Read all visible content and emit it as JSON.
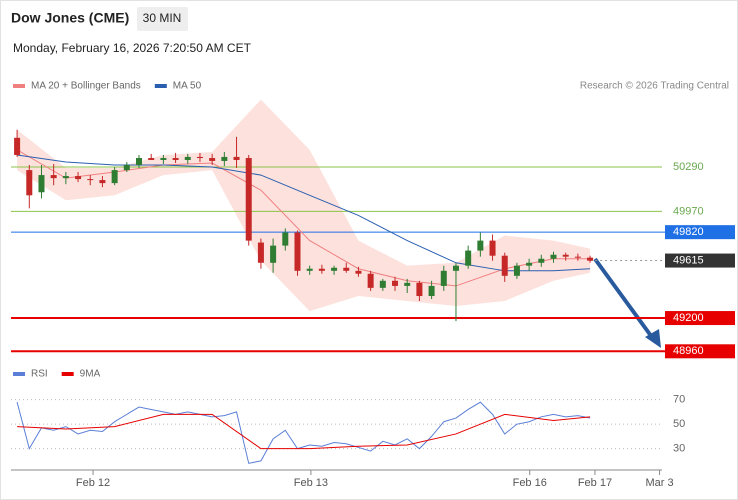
{
  "header": {
    "title": "Dow Jones (CME)",
    "interval": "30 MIN",
    "datetime": "Monday, February 16, 2026 7:20:50 AM CET",
    "credit": "Research © 2026 Trading Central"
  },
  "chart_data": [
    {
      "type": "candlestick",
      "x": [
        0,
        1,
        2,
        3,
        4,
        5,
        6,
        7,
        8,
        9,
        10,
        11,
        12,
        13,
        14,
        15,
        16,
        17,
        18,
        19,
        20,
        21,
        22,
        23,
        24,
        25,
        26,
        27,
        28,
        29,
        30,
        31,
        32,
        33,
        34,
        35,
        36,
        37,
        38,
        39,
        40,
        41,
        42,
        43,
        44,
        45,
        46,
        47
      ],
      "open": [
        50501,
        50268,
        50108,
        50232,
        50210,
        50225,
        50203,
        50196,
        50174,
        50268,
        50305,
        50355,
        50341,
        50355,
        50341,
        50363,
        50355,
        50334,
        50363,
        50355,
        49745,
        49599,
        49723,
        49817,
        49541,
        49556,
        49541,
        49563,
        49541,
        49520,
        49418,
        49469,
        49432,
        49454,
        49359,
        49432,
        49541,
        49578,
        49687,
        49759,
        49650,
        49505,
        49578,
        49599,
        49628,
        49657,
        49643,
        49636
      ],
      "high": [
        50559,
        50305,
        50305,
        50312,
        50254,
        50254,
        50232,
        50225,
        50290,
        50326,
        50377,
        50385,
        50377,
        50392,
        50385,
        50392,
        50385,
        50399,
        50508,
        50377,
        49774,
        49774,
        49847,
        49832,
        49578,
        49585,
        49578,
        49599,
        49570,
        49541,
        49483,
        49498,
        49483,
        49469,
        49469,
        49578,
        49599,
        49723,
        49817,
        49803,
        49672,
        49599,
        49628,
        49657,
        49679,
        49672,
        49665,
        49650
      ],
      "low": [
        50363,
        49992,
        50064,
        50159,
        50166,
        50181,
        50159,
        50145,
        50159,
        50254,
        50283,
        50341,
        50312,
        50319,
        50312,
        50326,
        50305,
        50297,
        50283,
        49723,
        49556,
        49527,
        49687,
        49505,
        49512,
        49520,
        49512,
        49527,
        49498,
        49396,
        49396,
        49396,
        49381,
        49323,
        49337,
        49396,
        49178,
        49556,
        49643,
        49614,
        49461,
        49483,
        49541,
        49570,
        49599,
        49614,
        49614,
        49599
      ],
      "close": [
        50377,
        50086,
        50232,
        50210,
        50225,
        50203,
        50196,
        50174,
        50268,
        50305,
        50355,
        50341,
        50355,
        50341,
        50363,
        50355,
        50334,
        50363,
        50341,
        49759,
        49599,
        49723,
        49817,
        49541,
        49556,
        49541,
        49563,
        49541,
        49520,
        49418,
        49469,
        49432,
        49454,
        49359,
        49432,
        49541,
        49578,
        49687,
        49759,
        49650,
        49505,
        49578,
        49599,
        49628,
        49657,
        49643,
        49636,
        49614
      ],
      "up_color": "#2e7d32",
      "down_color": "#c62828",
      "series": [
        {
          "name": "MA 20 + Bollinger Bands",
          "color": "#f08080",
          "band_color": "#fde1dd",
          "x": [
            0,
            4,
            8,
            12,
            16,
            20,
            24,
            28,
            32,
            36,
            40,
            44,
            47
          ],
          "values": [
            50414,
            50210,
            50254,
            50305,
            50319,
            50123,
            49759,
            49556,
            49469,
            49432,
            49556,
            49628,
            49628
          ],
          "upper": [
            50559,
            50283,
            50283,
            50377,
            50399,
            50777,
            50414,
            49759,
            49578,
            49599,
            49796,
            49759,
            49701
          ],
          "lower": [
            50268,
            50050,
            50086,
            50232,
            50268,
            49614,
            49250,
            49359,
            49323,
            49287,
            49323,
            49469,
            49527
          ]
        },
        {
          "name": "MA 50",
          "color": "#2a5fb0",
          "x": [
            0,
            4,
            8,
            12,
            16,
            20,
            24,
            28,
            32,
            36,
            40,
            44,
            47
          ],
          "values": [
            50377,
            50326,
            50305,
            50305,
            50290,
            50232,
            50086,
            49941,
            49759,
            49599,
            49541,
            49541,
            49556
          ]
        }
      ],
      "levels": [
        {
          "value": 50290,
          "color": "#8bc34a",
          "boxed": false
        },
        {
          "value": 49970,
          "color": "#8bc34a",
          "boxed": false
        },
        {
          "value": 49820,
          "color": "#1f6fe5",
          "boxed": true
        },
        {
          "value": 49615,
          "color": "#333333",
          "boxed": true
        },
        {
          "value": 49200,
          "color": "#e60000",
          "boxed": true
        },
        {
          "value": 48960,
          "color": "#e60000",
          "boxed": true
        }
      ],
      "xlim": [
        -0.5,
        52.9
      ],
      "ylim": [
        48890,
        50810
      ]
    },
    {
      "type": "line",
      "series": [
        {
          "name": "RSI",
          "color": "#5b7fd6",
          "x": [
            0,
            1,
            2,
            3,
            4,
            5,
            6,
            7,
            8,
            9,
            10,
            11,
            12,
            13,
            14,
            15,
            16,
            17,
            18,
            19,
            20,
            21,
            22,
            23,
            24,
            25,
            26,
            27,
            28,
            29,
            30,
            31,
            32,
            33,
            34,
            35,
            36,
            37,
            38,
            39,
            40,
            41,
            42,
            43,
            44,
            45,
            46,
            47
          ],
          "values": [
            68,
            30,
            47,
            45,
            48,
            42,
            45,
            44,
            52,
            58,
            64,
            62,
            60,
            58,
            60,
            58,
            56,
            57,
            60,
            18,
            20,
            38,
            45,
            30,
            33,
            32,
            35,
            34,
            31,
            28,
            36,
            33,
            38,
            30,
            40,
            52,
            55,
            62,
            68,
            58,
            42,
            50,
            52,
            56,
            58,
            56,
            57,
            55
          ]
        },
        {
          "name": "9MA",
          "color": "#e60000",
          "x": [
            0,
            4,
            8,
            12,
            16,
            20,
            24,
            28,
            32,
            36,
            40,
            44,
            47
          ],
          "values": [
            48,
            46,
            48,
            58,
            58,
            30,
            30,
            32,
            33,
            42,
            58,
            53,
            56
          ]
        }
      ],
      "xlim": [
        -0.5,
        52.9
      ],
      "ylim": [
        15,
        82
      ],
      "yticks": [
        70,
        50,
        30
      ],
      "grid": true,
      "xticks": [
        {
          "value": 6.23,
          "label": "Feb 12"
        },
        {
          "value": 24.1,
          "label": "Feb 13"
        },
        {
          "value": 42.05,
          "label": "Feb 16"
        },
        {
          "value": 47.4,
          "label": "Feb 17"
        },
        {
          "value": 52.7,
          "label": "Mar 3"
        }
      ]
    }
  ]
}
